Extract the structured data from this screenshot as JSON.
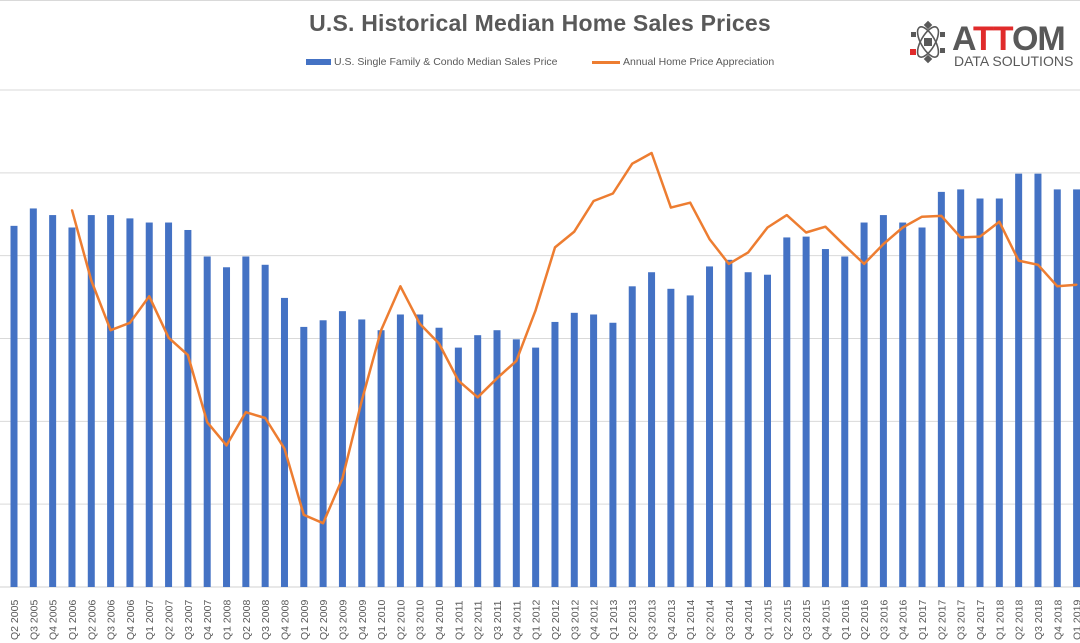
{
  "logo": {
    "brand": "ATTOM",
    "tagline": "DATA SOLUTIONS",
    "accent_color": "#e02b2b",
    "brand_color": "#595959"
  },
  "chart_data": {
    "type": "bar+line",
    "title": "U.S. Historical Median Home Sales Prices",
    "xlabel": "",
    "ylabel": "",
    "y_axis_labels_shown": false,
    "ylim": [
      0,
      6
    ],
    "grid": true,
    "legend_position": "top",
    "categories": [
      "Q2 2005",
      "Q3 2005",
      "Q4 2005",
      "Q1 2006",
      "Q2 2006",
      "Q3 2006",
      "Q4 2006",
      "Q1 2007",
      "Q2 2007",
      "Q3 2007",
      "Q4 2007",
      "Q1 2008",
      "Q2 2008",
      "Q3 2008",
      "Q4 2008",
      "Q1 2009",
      "Q2 2009",
      "Q3 2009",
      "Q4 2009",
      "Q1 2010",
      "Q2 2010",
      "Q3 2010",
      "Q4 2010",
      "Q1 2011",
      "Q2 2011",
      "Q3 2011",
      "Q4 2011",
      "Q1 2012",
      "Q2 2012",
      "Q3 2012",
      "Q4 2012",
      "Q1 2013",
      "Q2 2013",
      "Q3 2013",
      "Q4 2013",
      "Q1 2014",
      "Q2 2014",
      "Q3 2014",
      "Q4 2014",
      "Q1 2015",
      "Q2 2015",
      "Q3 2015",
      "Q4 2015",
      "Q1 2016",
      "Q2 2016",
      "Q3 2016",
      "Q4 2016",
      "Q1 2017",
      "Q2 2017",
      "Q3 2017",
      "Q4 2017",
      "Q1 2018",
      "Q2 2018",
      "Q3 2018",
      "Q4 2018",
      "Q1 2019"
    ],
    "series": [
      {
        "name": "U.S. Single Family & Condo Median Sales Price",
        "type": "bar",
        "color": "#4472c4",
        "values": [
          4.36,
          4.57,
          4.49,
          4.34,
          4.49,
          4.49,
          4.45,
          4.4,
          4.4,
          4.31,
          3.99,
          3.86,
          3.99,
          3.89,
          3.49,
          3.14,
          3.22,
          3.33,
          3.23,
          3.1,
          3.29,
          3.29,
          3.13,
          2.89,
          3.04,
          3.1,
          2.99,
          2.89,
          3.2,
          3.31,
          3.29,
          3.19,
          3.63,
          3.8,
          3.6,
          3.52,
          3.87,
          3.95,
          3.8,
          3.77,
          4.22,
          4.23,
          4.08,
          3.99,
          4.4,
          4.49,
          4.4,
          4.34,
          4.77,
          4.8,
          4.69,
          4.69,
          4.99,
          4.99,
          4.8,
          4.8
        ]
      },
      {
        "name": "Annual Home Price Appreciation",
        "type": "line",
        "color": "#ed7d31",
        "values": [
          null,
          null,
          null,
          4.55,
          3.7,
          3.1,
          3.19,
          3.51,
          3.01,
          2.8,
          1.99,
          1.71,
          2.11,
          2.04,
          1.67,
          0.87,
          0.77,
          1.31,
          2.25,
          3.1,
          3.63,
          3.18,
          2.94,
          2.49,
          2.29,
          2.52,
          2.73,
          3.34,
          4.1,
          4.29,
          4.66,
          4.75,
          5.11,
          5.24,
          4.58,
          4.64,
          4.2,
          3.9,
          4.04,
          4.34,
          4.49,
          4.28,
          4.35,
          4.12,
          3.9,
          4.14,
          4.34,
          4.47,
          4.48,
          4.22,
          4.23,
          4.41,
          3.94,
          3.89,
          3.63,
          3.65
        ]
      }
    ]
  }
}
